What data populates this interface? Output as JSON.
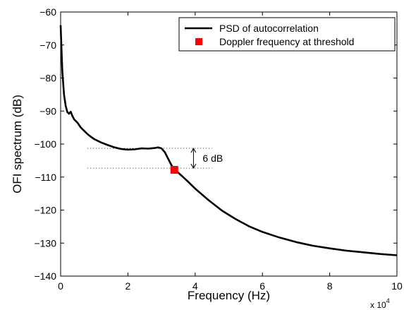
{
  "chart_data": {
    "type": "line",
    "title": "",
    "xlabel": "Frequency (Hz)",
    "ylabel": "OFI spectrum (dB)",
    "x_multiplier": "x 10",
    "x_multiplier_exp": "4",
    "xlim": [
      0,
      100000
    ],
    "ylim": [
      -140,
      -60
    ],
    "xticks": [
      0,
      20000,
      40000,
      60000,
      80000,
      100000
    ],
    "xtick_labels": [
      "0",
      "2",
      "4",
      "6",
      "8",
      "10"
    ],
    "yticks": [
      -140,
      -130,
      -120,
      -110,
      -100,
      -90,
      -80,
      -70,
      -60
    ],
    "ytick_labels": [
      "−140",
      "−130",
      "−120",
      "−110",
      "−100",
      "−90",
      "−80",
      "−70",
      "−60"
    ],
    "grid": false,
    "legend_position": "top-right",
    "series": [
      {
        "name": "PSD of autocorrelation",
        "color": "#000000",
        "x": [
          0,
          200,
          500,
          1000,
          1500,
          2000,
          2500,
          3000,
          3500,
          4000,
          5000,
          6000,
          7000,
          8000,
          9000,
          10000,
          12000,
          14000,
          16000,
          18000,
          20000,
          22000,
          24000,
          26000,
          28000,
          29000,
          30000,
          31000,
          32000,
          33000,
          34000,
          36000,
          38000,
          40000,
          44000,
          48000,
          52000,
          56000,
          60000,
          65000,
          70000,
          75000,
          80000,
          85000,
          90000,
          95000,
          100000
        ],
        "y": [
          -64,
          -70,
          -78,
          -85,
          -88.5,
          -90.3,
          -90.8,
          -90.2,
          -91.5,
          -92.5,
          -93.5,
          -95,
          -96,
          -97,
          -97.8,
          -98.5,
          -99.5,
          -100.3,
          -101,
          -101.5,
          -101.7,
          -101.6,
          -101.3,
          -101.4,
          -101.2,
          -101.0,
          -101.3,
          -102.5,
          -104.5,
          -106.5,
          -107.8,
          -109.6,
          -111.5,
          -113.5,
          -117,
          -120.2,
          -122.7,
          -124.9,
          -126.6,
          -128.3,
          -129.7,
          -130.8,
          -131.6,
          -132.3,
          -132.8,
          -133.3,
          -133.7
        ]
      },
      {
        "name": "Doppler frequency at threshold",
        "color": "#ff0000",
        "marker": "square",
        "x": [
          33800
        ],
        "y": [
          -107.8
        ]
      }
    ],
    "reference_lines": [
      {
        "name": "upper-threshold",
        "y": -101.3,
        "x_from": 8000,
        "x_to": 45000,
        "style": "dotted"
      },
      {
        "name": "lower-threshold",
        "y": -107.3,
        "x_from": 8000,
        "x_to": 45000,
        "style": "dotted"
      }
    ],
    "annotation": {
      "text": "6 dB",
      "x": 39500,
      "y_top": -101.3,
      "y_bottom": -107.3
    }
  }
}
